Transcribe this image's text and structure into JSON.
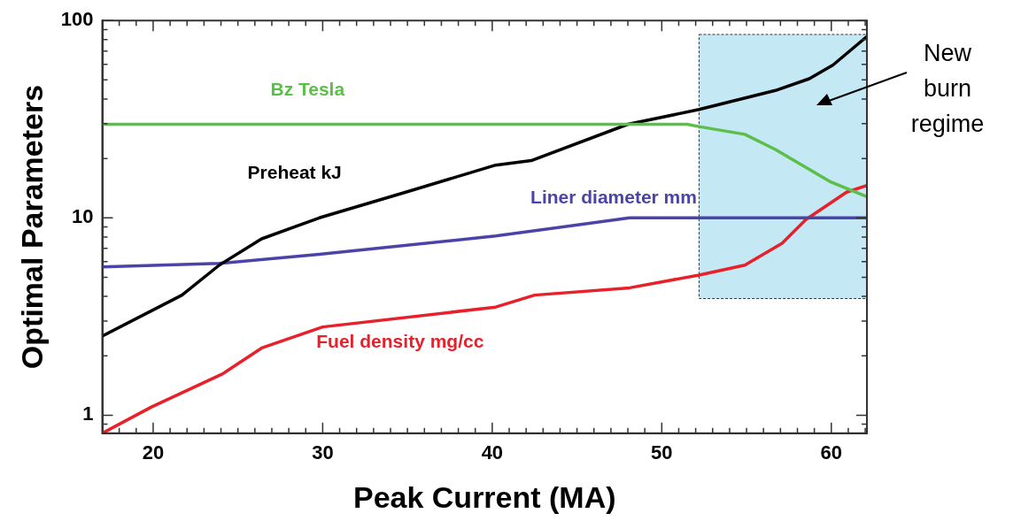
{
  "chart_data": {
    "type": "line",
    "xlabel": "Peak Current (MA)",
    "ylabel": "Optimal Parameters",
    "log": "y",
    "grid": false,
    "legend": false,
    "marker": "none",
    "line_style": "solid",
    "xlim": [
      17,
      62.1
    ],
    "ylim": [
      0.81,
      100
    ],
    "xticks": [
      {
        "value": 18,
        "label": null
      },
      {
        "value": 19,
        "label": null
      },
      20,
      {
        "value": 21,
        "label": null
      },
      {
        "value": 22,
        "label": null
      },
      {
        "value": 23,
        "label": null
      },
      {
        "value": 24,
        "label": null
      },
      {
        "value": 25,
        "label": null
      },
      {
        "value": 26,
        "label": null
      },
      {
        "value": 27,
        "label": null
      },
      {
        "value": 28,
        "label": null
      },
      {
        "value": 29,
        "label": null
      },
      30,
      {
        "value": 31,
        "label": null
      },
      {
        "value": 32,
        "label": null
      },
      {
        "value": 33,
        "label": null
      },
      {
        "value": 34,
        "label": null
      },
      {
        "value": 35,
        "label": null
      },
      {
        "value": 36,
        "label": null
      },
      {
        "value": 37,
        "label": null
      },
      {
        "value": 38,
        "label": null
      },
      {
        "value": 39,
        "label": null
      },
      40,
      {
        "value": 41,
        "label": null
      },
      {
        "value": 42,
        "label": null
      },
      {
        "value": 43,
        "label": null
      },
      {
        "value": 44,
        "label": null
      },
      {
        "value": 45,
        "label": null
      },
      {
        "value": 46,
        "label": null
      },
      {
        "value": 47,
        "label": null
      },
      {
        "value": 48,
        "label": null
      },
      {
        "value": 49,
        "label": null
      },
      50,
      {
        "value": 51,
        "label": null
      },
      {
        "value": 52,
        "label": null
      },
      {
        "value": 53,
        "label": null
      },
      {
        "value": 54,
        "label": null
      },
      {
        "value": 55,
        "label": null
      },
      {
        "value": 56,
        "label": null
      },
      {
        "value": 57,
        "label": null
      },
      {
        "value": 58,
        "label": null
      },
      {
        "value": 59,
        "label": null
      },
      60,
      {
        "value": 61,
        "label": null
      },
      {
        "value": 62,
        "label": null
      }
    ],
    "yticks": [
      {
        "value": 0.9,
        "label": null
      },
      1,
      {
        "value": 2,
        "label": null
      },
      {
        "value": 3,
        "label": null
      },
      {
        "value": 4,
        "label": null
      },
      {
        "value": 5,
        "label": null
      },
      {
        "value": 6,
        "label": null
      },
      {
        "value": 7,
        "label": null
      },
      {
        "value": 8,
        "label": null
      },
      {
        "value": 9,
        "label": null
      },
      10,
      {
        "value": 20,
        "label": null
      },
      {
        "value": 30,
        "label": null
      },
      {
        "value": 40,
        "label": null
      },
      {
        "value": 50,
        "label": null
      },
      {
        "value": 60,
        "label": null
      },
      {
        "value": 70,
        "label": null
      },
      {
        "value": 80,
        "label": null
      },
      {
        "value": 90,
        "label": null
      },
      100
    ],
    "series": [
      {
        "name": "Bz Tesla",
        "color": "#5cbf4a",
        "x": [
          17,
          30,
          40,
          48,
          51.5,
          52.2,
          54.9,
          56.7,
          59.9,
          62.1
        ],
        "values": [
          29.8,
          29.8,
          29.8,
          29.8,
          29.8,
          29,
          26.5,
          22.2,
          15.3,
          12.8
        ]
      },
      {
        "name": "Preheat kJ",
        "color": "#000000",
        "x": [
          17,
          21.7,
          23.9,
          26.4,
          29.8,
          34.9,
          40.2,
          42.3,
          48,
          52.2,
          56.7,
          58.7,
          60.1,
          62.1
        ],
        "values": [
          2.52,
          4.06,
          5.76,
          7.83,
          10,
          13.5,
          18.5,
          19.5,
          29.8,
          35.4,
          44.2,
          50.7,
          59.5,
          83
        ]
      },
      {
        "name": "Liner diameter mm",
        "color": "#4b44a8",
        "x": [
          17,
          23.9,
          29.8,
          40.2,
          48.1,
          55,
          62.1
        ],
        "values": [
          5.64,
          5.88,
          6.54,
          8.09,
          10,
          10,
          10
        ]
      },
      {
        "name": "Fuel density mg/cc",
        "color": "#e8202a",
        "x": [
          17,
          19.9,
          24.1,
          26.4,
          30,
          40.2,
          42.5,
          48.1,
          52.2,
          54.9,
          57.1,
          58.5,
          60.9,
          62.1
        ],
        "values": [
          0.81,
          1.1,
          1.62,
          2.19,
          2.8,
          3.53,
          4.06,
          4.42,
          5.13,
          5.76,
          7.43,
          9.8,
          13.5,
          14.6
        ]
      }
    ],
    "bands": [
      {
        "axis": "x",
        "from": 52.2,
        "to": 62.1,
        "label": "New burn regime",
        "color": "#c4e8f4"
      }
    ]
  }
}
